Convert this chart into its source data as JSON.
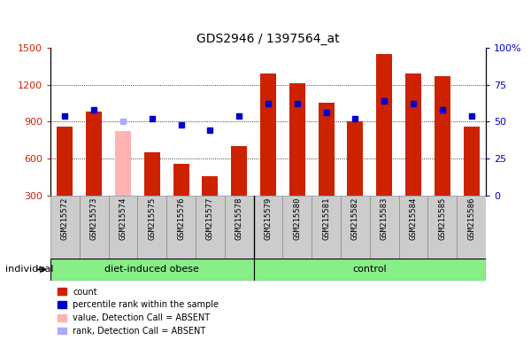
{
  "title": "GDS2946 / 1397564_at",
  "samples": [
    "GSM215572",
    "GSM215573",
    "GSM215574",
    "GSM215575",
    "GSM215576",
    "GSM215577",
    "GSM215578",
    "GSM215579",
    "GSM215580",
    "GSM215581",
    "GSM215582",
    "GSM215583",
    "GSM215584",
    "GSM215585",
    "GSM215586"
  ],
  "bar_values": [
    860,
    980,
    null,
    650,
    560,
    460,
    700,
    1290,
    1210,
    1050,
    900,
    1450,
    1290,
    1270,
    860
  ],
  "bar_absent_values": [
    null,
    null,
    820,
    null,
    null,
    null,
    null,
    null,
    null,
    null,
    null,
    null,
    null,
    null,
    null
  ],
  "bar_color_normal": "#cc2200",
  "bar_color_absent": "#ffb3b3",
  "percentile_values": [
    54,
    58,
    null,
    52,
    48,
    44,
    54,
    62,
    62,
    56,
    52,
    64,
    62,
    58,
    54
  ],
  "percentile_absent_values": [
    null,
    null,
    50,
    null,
    null,
    null,
    null,
    null,
    null,
    null,
    null,
    null,
    null,
    null,
    null
  ],
  "pct_color_normal": "#0000cc",
  "pct_color_absent": "#aaaaff",
  "ylim_left": [
    300,
    1500
  ],
  "ylim_right": [
    0,
    100
  ],
  "yticks_left": [
    300,
    600,
    900,
    1200,
    1500
  ],
  "yticks_right": [
    0,
    25,
    50,
    75,
    100
  ],
  "plot_bg_color": "#ffffff",
  "tick_area_bg": "#cccccc",
  "group_color": "#88ee88",
  "bar_width": 0.55,
  "groups": [
    {
      "label": "diet-induced obese",
      "start": 0,
      "end": 7
    },
    {
      "label": "control",
      "start": 7,
      "end": 15
    }
  ],
  "legend_items": [
    {
      "label": "count",
      "color": "#cc2200"
    },
    {
      "label": "percentile rank within the sample",
      "color": "#0000cc"
    },
    {
      "label": "value, Detection Call = ABSENT",
      "color": "#ffb3b3"
    },
    {
      "label": "rank, Detection Call = ABSENT",
      "color": "#aaaaff"
    }
  ],
  "individual_label": "individual"
}
